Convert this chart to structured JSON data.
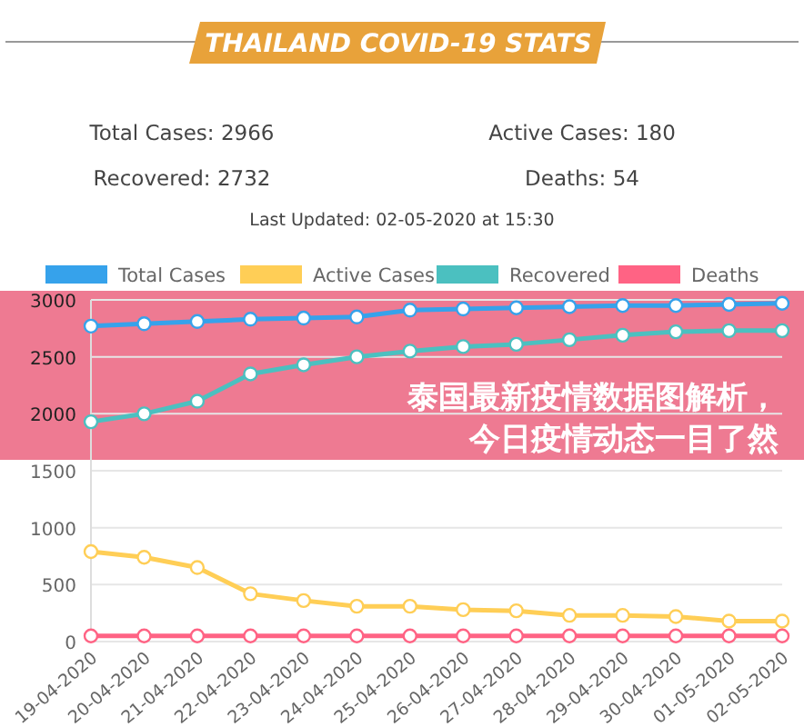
{
  "chart_data": {
    "type": "line",
    "title": "THAILAND COVID-19 STATS",
    "subtitle": "泰国最新疫情数据图解析，今日疫情动态一目了然",
    "annotations": [
      "Total Cases: 2966",
      "Active Cases: 180",
      "Recovered: 2732",
      "Deaths: 54",
      "Last Updated: 02-05-2020 at 15:30"
    ],
    "categories": [
      "19-04-2020",
      "20-04-2020",
      "21-04-2020",
      "22-04-2020",
      "23-04-2020",
      "24-04-2020",
      "25-04-2020",
      "26-04-2020",
      "27-04-2020",
      "28-04-2020",
      "29-04-2020",
      "30-04-2020",
      "01-05-2020",
      "02-05-2020"
    ],
    "series": [
      {
        "name": "Total Cases",
        "color": "#36a2eb",
        "values": [
          2770,
          2790,
          2810,
          2830,
          2840,
          2850,
          2910,
          2920,
          2930,
          2940,
          2950,
          2950,
          2960,
          2970
        ]
      },
      {
        "name": "Active Cases",
        "color": "#ffce56",
        "values": [
          790,
          740,
          650,
          420,
          360,
          310,
          310,
          280,
          270,
          230,
          230,
          220,
          180,
          180
        ]
      },
      {
        "name": "Recovered",
        "color": "#4bc0c0",
        "values": [
          1930,
          2000,
          2110,
          2350,
          2430,
          2500,
          2550,
          2590,
          2610,
          2650,
          2690,
          2720,
          2730,
          2730
        ]
      },
      {
        "name": "Deaths",
        "color": "#ff6384",
        "values": [
          50,
          50,
          50,
          50,
          50,
          50,
          50,
          50,
          50,
          50,
          50,
          50,
          50,
          50
        ]
      }
    ],
    "ylim": [
      0,
      3000
    ],
    "yticks": [
      0,
      500,
      1000,
      1500,
      2000,
      2500,
      3000
    ],
    "grid": "y",
    "legend": "top",
    "marker": "circle",
    "line_style": "solid"
  }
}
